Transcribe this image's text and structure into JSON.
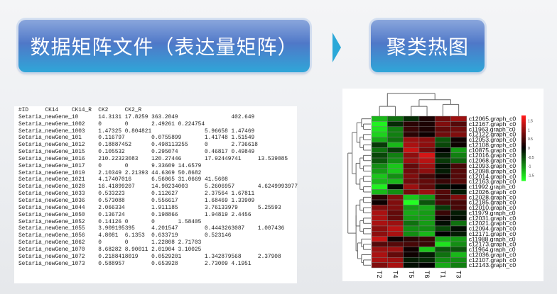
{
  "header": {
    "left_title": "数据矩阵文件（表达量矩阵）",
    "right_title": "聚类热图",
    "arrow_icon": "chevron-right-icon"
  },
  "matrix_file": {
    "lines": [
      "#ID\tCK14\tCK14_R\tCK2\tCK2_R",
      "Setaria_newGene_10\t14.3131 17.8259 363.2049\t\t402.649",
      "Setaria_newGene_1002\t0\t0\t2.49261 0.224754",
      "Setaria_newGene_1003\t1.47325 0.804821\t\t5.96658 1.47469",
      "Setaria_newGene_101\t0.116797\t0.0755899\t1.41748 1.51549",
      "Setaria_newGene_1012\t0.18887452\t0.498113255\t0\t2.736618",
      "Setaria_newGene_1015\t0.105532\t0.295074\t0.46817 0.49849",
      "Setaria_newGene_1016\t210.22323083\t120.27446\t17.92449741\t13.539085",
      "Setaria_newGene_1017\t0\t0\t9.33609 14.6579",
      "Setaria_newGene_1019\t2.10349 2.21393 44.6369 50.8682",
      "Setaria_newGene_1021\t4.17407016\t6.56065 31.0669 41.5608",
      "Setaria_newGene_1028\t16.41899207\t14.90234003\t5.2606957\t4.6249993977",
      "Setaria_newGene_1033\t0.533223\t0.112627\t2.37564 1.67811",
      "Setaria_newGene_1036\t0.573088\t0.556617\t1.68469 1.33909",
      "Setaria_newGene_1044\t2.066334\t1.911185\t3.76133979\t5.25593",
      "Setaria_newGene_1050\t0.136724\t0.198866\t1.94819 2.4456",
      "Setaria_newGene_1052\t0.14126 0\t0\t1.58405",
      "Setaria_newGene_1055\t3.909195395\t4.201547\t0.4443263087\t1.007436",
      "Setaria_newGene_1056\t4.8081\t6.1353\t0.633719\t0.523146",
      "Setaria_newGene_1062\t0\t0\t1.22808 2.71703",
      "Setaria_newGene_1070\t8.68282 8.90011 2.01904 3.10025",
      "Setaria_newGene_1072\t0.2188418019\t0.0529201\t1.342879568\t2.37908",
      "Setaria_newGene_1073\t0.588957\t0.653928\t2.73009 4.1951"
    ]
  },
  "chart_data": {
    "type": "heatmap",
    "columns": [
      "T2",
      "T4",
      "T5",
      "T6",
      "T1",
      "T3"
    ],
    "rows": [
      "c12065.graph_c0",
      "c12167.graph_c0",
      "c11963.graph_c0",
      "c12122.graph_c0",
      "c12053.graph_c0",
      "c12108.graph_c0",
      "c10875.graph_c0",
      "c12016.graph_c0",
      "c12068.graph_c0",
      "c12093.graph_c0",
      "c12098.graph_c0",
      "c12014.graph_c0",
      "c12163.graph_c0",
      "c11992.graph_c0",
      "c12026.graph_c0",
      "c12028.graph_c0",
      "c12185.graph_c0",
      "c12010.graph_c0",
      "c11979.graph_c0",
      "c12031.graph_c0",
      "c12021.graph_c0",
      "c12094.graph_c0",
      "c12171.graph_c0",
      "c11988.graph_c0",
      "c12173.graph_c0",
      "c11964.graph_c0",
      "c12036.graph_c0",
      "c12107.graph_c0",
      "c12143.graph_c0"
    ],
    "values": [
      [
        -1.3,
        -0.8,
        -0.3,
        0.2,
        0.8,
        1.1
      ],
      [
        -1.7,
        -0.3,
        0.3,
        0.2,
        0.9,
        0.6
      ],
      [
        -1.6,
        -0.9,
        0.4,
        0.2,
        0.7,
        0.8
      ],
      [
        -1.5,
        -0.9,
        0.3,
        0.1,
        0.8,
        0.9
      ],
      [
        -1.2,
        -0.8,
        1.1,
        1.0,
        -0.6,
        0.1
      ],
      [
        -0.4,
        -1.3,
        1.2,
        1.0,
        -0.5,
        0.1
      ],
      [
        -0.8,
        -0.4,
        1.4,
        0.8,
        0,
        -1.1
      ],
      [
        -0.5,
        -0.9,
        1.0,
        1.5,
        -0.2,
        -0.9
      ],
      [
        -0.6,
        -1.0,
        1.1,
        1.3,
        -0.4,
        -0.7
      ],
      [
        -1.0,
        -1.4,
        0.7,
        1.1,
        -0.1,
        0.5
      ],
      [
        -1.1,
        -1.4,
        0.8,
        1.0,
        -0.2,
        0.6
      ],
      [
        -1.4,
        -1.0,
        0.9,
        0.5,
        0.1,
        0.6
      ],
      [
        -1.3,
        -1.3,
        0.8,
        0.7,
        0.4,
        0.6
      ],
      [
        -1.7,
        -0.1,
        1.1,
        0.7,
        -0.1,
        0
      ],
      [
        -1.3,
        -1.0,
        0.8,
        1.1,
        0.6,
        -0.2
      ],
      [
        0.3,
        0.9,
        -1.4,
        -1.1,
        0.5,
        0.9
      ],
      [
        0.1,
        0.9,
        -1.8,
        -0.6,
        0.5,
        0.5
      ],
      [
        0.9,
        0.9,
        -1.1,
        -1.2,
        -0.4,
        0.5
      ],
      [
        1.2,
        0.7,
        -1.2,
        -1.1,
        0.4,
        -0.2
      ],
      [
        1.2,
        0.7,
        -1.1,
        -1.1,
        0.1,
        -0.1
      ],
      [
        1.2,
        1.1,
        -0.8,
        -1.1,
        -0.1,
        -0.8
      ],
      [
        1.0,
        1.3,
        -1.0,
        -1.0,
        -0.5,
        -0.1
      ],
      [
        1.0,
        1.2,
        -1.0,
        -1.3,
        0,
        -0.2
      ],
      [
        1.4,
        0.1,
        0.3,
        0.4,
        -1.2,
        -1.1
      ],
      [
        0.6,
        0.6,
        0.5,
        0.4,
        -1.6,
        -1.0
      ],
      [
        1.1,
        1.1,
        0.1,
        -1.4,
        -0.6,
        -0.6
      ],
      [
        1.2,
        0.7,
        0.1,
        -0.2,
        -0.8,
        -1.3
      ],
      [
        1.2,
        1.1,
        -0.2,
        -0.3,
        -1.0,
        -1.0
      ],
      [
        0.9,
        1.2,
        -0.1,
        0,
        -1.2,
        -0.9
      ]
    ],
    "color_scale": {
      "low": "#22ff22",
      "mid": "#000000",
      "high": "#ff1a1a",
      "range": [
        -1.8,
        1.8
      ]
    },
    "legend_ticks": [
      "1.5",
      "1",
      "0.5",
      "0",
      "-0.5",
      "-1",
      "-1.5"
    ],
    "legend_tick_values": [
      1.5,
      1,
      0.5,
      0,
      -0.5,
      -1,
      -1.5
    ],
    "legend_placement": "right",
    "dendrograms": [
      "top",
      "left"
    ]
  }
}
